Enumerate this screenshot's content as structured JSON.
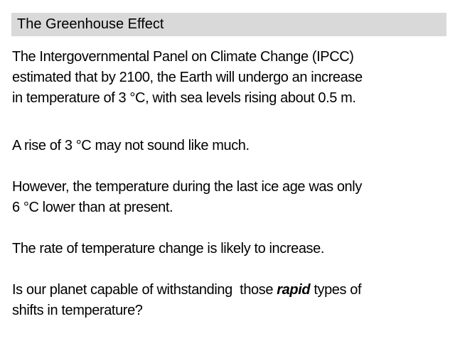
{
  "header": {
    "title": "The Greenhouse Effect"
  },
  "paragraphs": [
    {
      "lines": [
        [
          "The Intergovernmental Panel on Climate Change (IPCC)"
        ],
        [
          "estimated that by 2100, the Earth will undergo an increase"
        ],
        [
          "in temperature of 3 °C, with sea levels rising about 0.5 m."
        ]
      ]
    },
    {
      "lines": [
        [
          "A rise of 3 °C may not sound like much."
        ]
      ]
    },
    {
      "lines": [
        [
          "However, the temperature during the last ice age was only"
        ],
        [
          "6 °C lower than at present."
        ]
      ]
    },
    {
      "lines": [
        [
          "The rate of temperature change is likely to increase."
        ]
      ]
    },
    {
      "lines": [
        [
          "Is our planet capable of withstanding  those ",
          "rapid",
          " types of"
        ],
        [
          "shifts in temperature?"
        ]
      ]
    }
  ]
}
